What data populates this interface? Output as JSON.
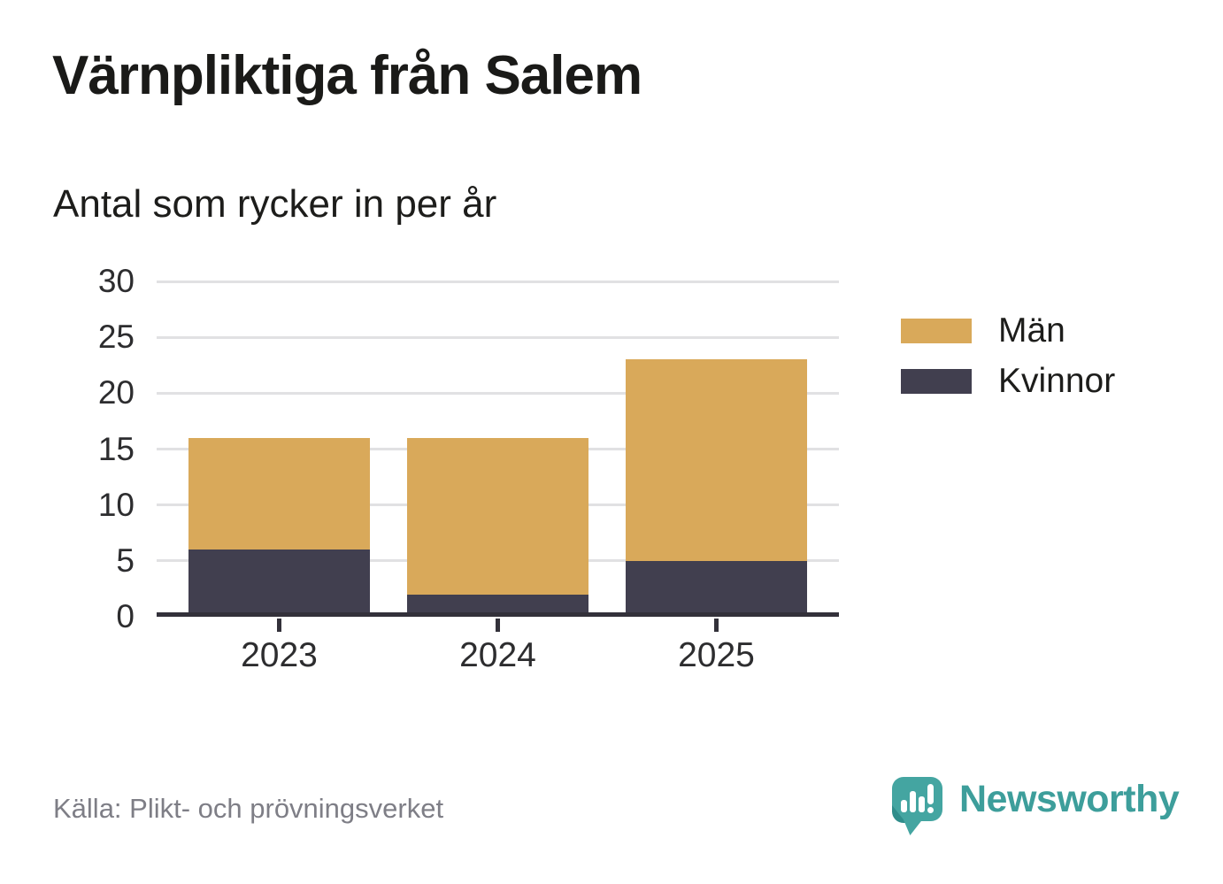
{
  "chart_data": {
    "type": "bar",
    "stacked": true,
    "title": "Värnpliktiga från Salem",
    "subtitle": "Antal som rycker in per år",
    "categories": [
      "2023",
      "2024",
      "2025"
    ],
    "series": [
      {
        "name": "Män",
        "color": "#d9a95a",
        "values": [
          10,
          14,
          18
        ]
      },
      {
        "name": "Kvinnor",
        "color": "#413f4f",
        "values": [
          6,
          2,
          5
        ]
      }
    ],
    "stack_totals": [
      16,
      16,
      23
    ],
    "ylim": [
      0,
      30
    ],
    "yticks": [
      0,
      5,
      10,
      15,
      20,
      25,
      30
    ],
    "grid": true,
    "legend_position": "right",
    "source": "Källa: Plikt- och prövningsverket"
  },
  "colors": {
    "grid": "#e1e1e3",
    "axis": "#33313a",
    "text": "#2d2d2f",
    "source_text": "#7e7e86",
    "brand_teal": "#3d9e9b"
  },
  "brand": {
    "name": "Newsworthy"
  }
}
